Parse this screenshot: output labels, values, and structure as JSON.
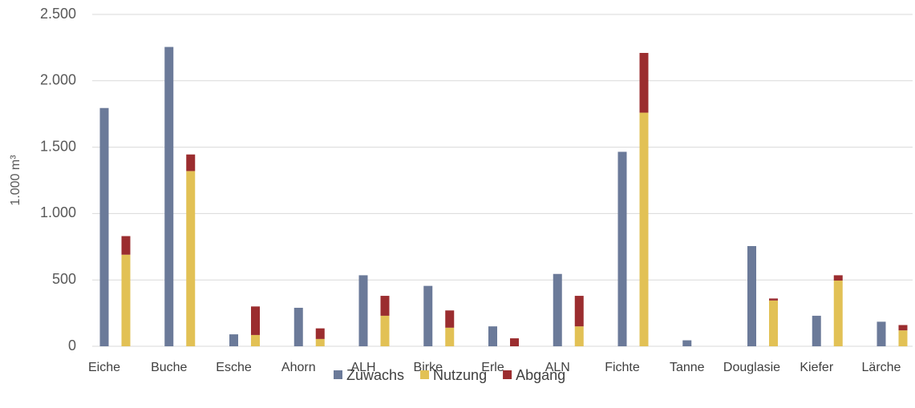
{
  "chart_data": {
    "type": "bar",
    "ylabel": "1.000 m³",
    "categories": [
      "Eiche",
      "Buche",
      "Esche",
      "Ahorn",
      "ALH",
      "Birke",
      "Erle",
      "ALN",
      "Fichte",
      "Tanne",
      "Douglasie",
      "Kiefer",
      "Lärche"
    ],
    "series": [
      {
        "name": "Zuwachs",
        "color": "#6b7a99",
        "values": [
          1795,
          2255,
          90,
          290,
          535,
          455,
          150,
          545,
          1465,
          45,
          755,
          230,
          185
        ]
      },
      {
        "name": "Nutzung",
        "color": "#e2c155",
        "values": [
          690,
          1320,
          85,
          55,
          230,
          140,
          0,
          150,
          1760,
          0,
          345,
          495,
          120
        ]
      },
      {
        "name": "Abgang",
        "color": "#9b2d2f",
        "values": [
          140,
          125,
          215,
          80,
          150,
          130,
          60,
          230,
          450,
          0,
          15,
          40,
          40
        ]
      }
    ],
    "ylim": [
      0,
      2500
    ],
    "yticks": [
      0,
      {
        "value": 500,
        "label": "500"
      },
      {
        "value": 1000,
        "label": "1.000"
      },
      {
        "value": 1500,
        "label": "1.500"
      },
      {
        "value": 2000,
        "label": "2.000"
      },
      {
        "value": 2500,
        "label": "2.500"
      }
    ],
    "grid": true,
    "legend": "bottom"
  }
}
